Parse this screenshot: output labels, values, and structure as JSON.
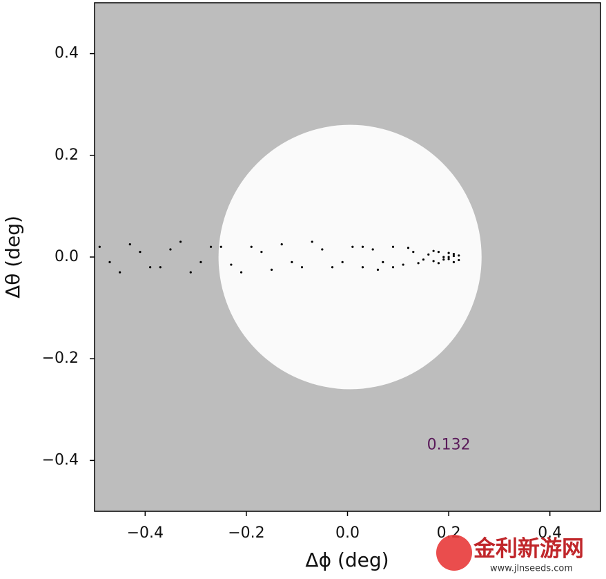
{
  "chart_data": {
    "type": "scatter",
    "x_label": "Δϕ (deg)",
    "y_label": "Δθ (deg)",
    "annotation": {
      "text": "0.132",
      "x": 0.2,
      "y": -0.37,
      "color": "#5a1a5a"
    },
    "background": "#bdbdbd",
    "circle": {
      "center": [
        0.005,
        0
      ],
      "radius": 0.26,
      "color": "#fafafa"
    },
    "color": "#000000",
    "x": [
      -0.49,
      -0.45,
      -0.41,
      -0.37,
      -0.33,
      -0.29,
      -0.25,
      -0.21,
      -0.17,
      -0.13,
      -0.09,
      -0.05,
      -0.01,
      -0.47,
      -0.43,
      -0.39,
      -0.35,
      -0.31,
      -0.27,
      -0.23,
      -0.19,
      -0.15,
      -0.11,
      -0.07,
      -0.03,
      0.01,
      0.03,
      0.05,
      0.07,
      0.09,
      0.11,
      0.13,
      0.15,
      0.03,
      0.06,
      0.09,
      0.12,
      0.14,
      0.16,
      0.17,
      0.18,
      0.19,
      0.2,
      0.21,
      0.22,
      0.17,
      0.18,
      0.19,
      0.2,
      0.21,
      0.22,
      0.2,
      0.21
    ],
    "values": [
      0.02,
      -0.03,
      0.01,
      -0.02,
      0.03,
      -0.01,
      0.02,
      -0.03,
      0.01,
      0.025,
      -0.02,
      0.015,
      -0.01,
      -0.01,
      0.025,
      -0.02,
      0.015,
      -0.03,
      0.02,
      -0.015,
      0.02,
      -0.025,
      -0.01,
      0.03,
      -0.02,
      0.02,
      -0.02,
      0.015,
      -0.01,
      0.02,
      -0.015,
      0.01,
      -0.005,
      0.02,
      -0.025,
      -0.02,
      0.018,
      -0.012,
      0.005,
      -0.008,
      0.01,
      -0.005,
      0.008,
      -0.01,
      0.003,
      0.012,
      -0.012,
      0.0,
      -0.004,
      0.006,
      -0.006,
      0.0,
      0.002
    ],
    "xlim": [
      -0.5,
      0.5
    ],
    "ylim": [
      -0.5,
      0.5
    ],
    "xticks": [
      {
        "value": -0.4,
        "label": "−0.4"
      },
      {
        "value": -0.2,
        "label": "−0.2"
      },
      {
        "value": 0,
        "label": "0.0"
      },
      {
        "value": 0.2,
        "label": "0.2"
      },
      {
        "value": 0.4,
        "label": "0.4"
      }
    ],
    "yticks": [
      {
        "value": -0.4,
        "label": "−0.4"
      },
      {
        "value": -0.2,
        "label": "−0.2"
      },
      {
        "value": 0,
        "label": "0.0"
      },
      {
        "value": 0.2,
        "label": "0.2"
      },
      {
        "value": 0.4,
        "label": "0.4"
      }
    ]
  },
  "watermark": {
    "name": "金利新游网",
    "url": "www.jlnseeds.com"
  }
}
